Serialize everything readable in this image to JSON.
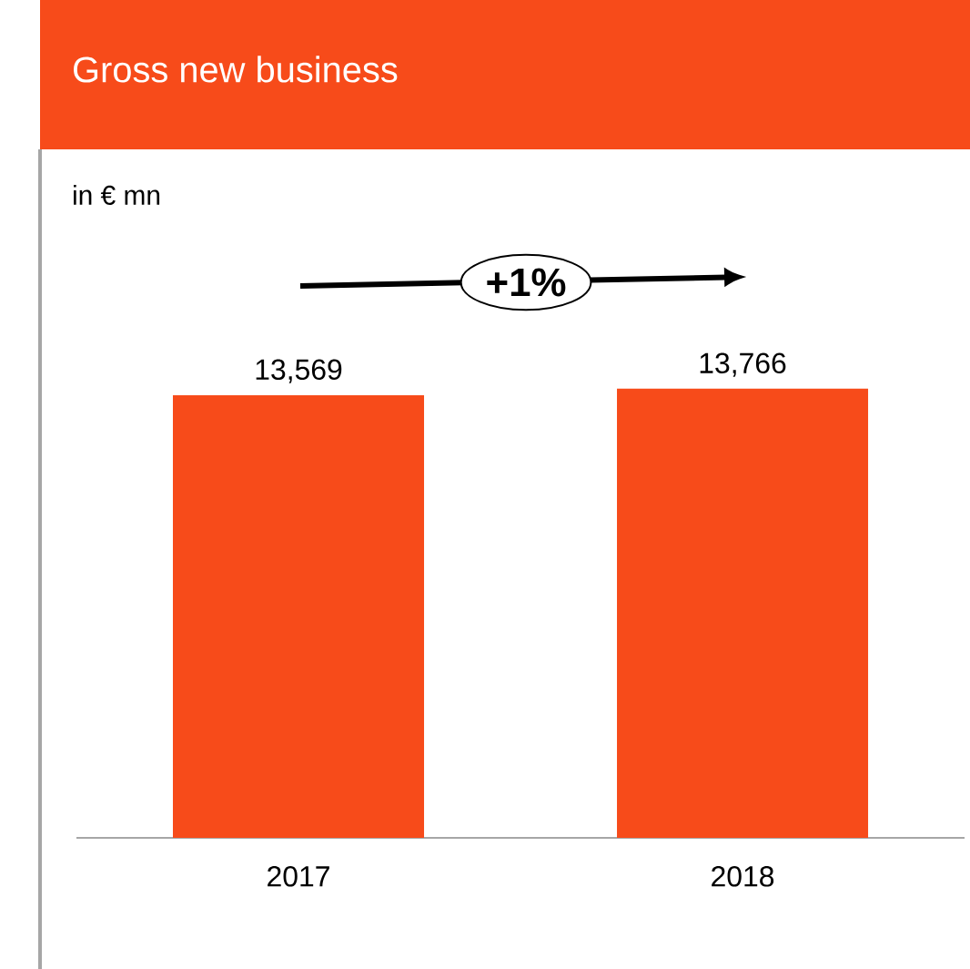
{
  "chart_data": {
    "type": "bar",
    "title": "Gross new business",
    "categories": [
      "2017",
      "2018"
    ],
    "values": [
      13569,
      13766
    ],
    "value_labels": [
      "13,569",
      "13,766"
    ],
    "color": "#f74b1a",
    "annotations": [
      "in € mn",
      "+1%"
    ]
  }
}
